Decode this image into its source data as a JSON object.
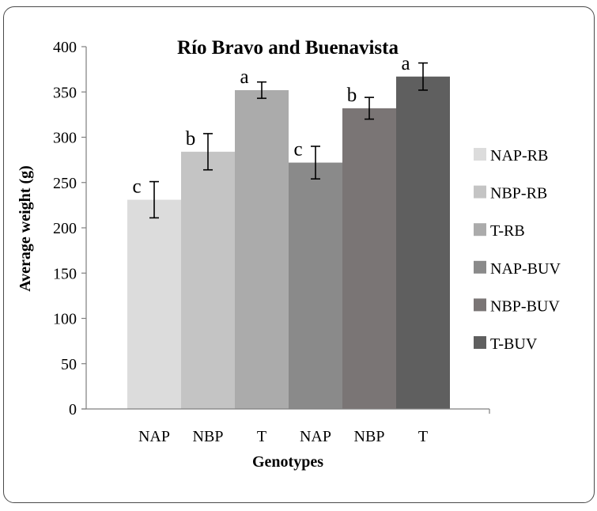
{
  "chart_data": {
    "type": "bar",
    "title": "Río Bravo and Buenavista",
    "xlabel": "Genotypes",
    "ylabel": "Average weight (g)",
    "ylim": [
      0,
      400
    ],
    "yticks": [
      0,
      50,
      100,
      150,
      200,
      250,
      300,
      350,
      400
    ],
    "grid": false,
    "legend_position": "right",
    "bars": [
      {
        "name": "NAP-RB",
        "category": "NAP",
        "value": 231,
        "error": 20,
        "letter": "c",
        "color": "#dcdcdc"
      },
      {
        "name": "NBP-RB",
        "category": "NBP",
        "value": 284,
        "error": 20,
        "letter": "b",
        "color": "#c4c4c4"
      },
      {
        "name": "T-RB",
        "category": "T",
        "value": 352,
        "error": 9,
        "letter": "a",
        "color": "#ababab"
      },
      {
        "name": "NAP-BUV",
        "category": "NAP",
        "value": 272,
        "error": 18,
        "letter": "c",
        "color": "#8a8a8a"
      },
      {
        "name": "NBP-BUV",
        "category": "NBP",
        "value": 332,
        "error": 12,
        "letter": "b",
        "color": "#7a7575"
      },
      {
        "name": "T-BUV",
        "category": "T",
        "value": 367,
        "error": 15,
        "letter": "a",
        "color": "#5f5f5f"
      }
    ],
    "colors": {
      "axis": "#7f7f7f",
      "text": "#000000",
      "errorbar": "#000000"
    }
  }
}
